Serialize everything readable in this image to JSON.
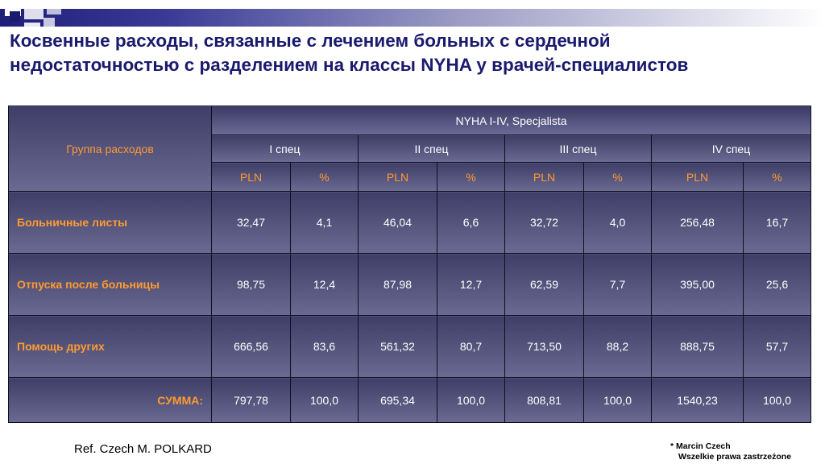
{
  "title": {
    "line1": "Косвенные расходы, связанные с лечением больных с сердечной",
    "line2": "недостаточностью с разделением на классы NYHA у врачей-специалистов"
  },
  "table": {
    "group_header": "Группа расходов",
    "top_header": "NYHA I-IV, Specjalista",
    "classes": [
      "I спец",
      "II спец",
      "III спец",
      "IV спец"
    ],
    "units": [
      "PLN",
      "%",
      "PLN",
      "%",
      "PLN",
      "%",
      "PLN",
      "%"
    ],
    "rows": [
      {
        "label": "Больничные листы",
        "values": [
          "32,47",
          "4,1",
          "46,04",
          "6,6",
          "32,72",
          "4,0",
          "256,48",
          "16,7"
        ]
      },
      {
        "label": "Отпуска после больницы",
        "values": [
          "98,75",
          "12,4",
          "87,98",
          "12,7",
          "62,59",
          "7,7",
          "395,00",
          "25,6"
        ]
      },
      {
        "label": "Помощь других",
        "values": [
          "666,56",
          "83,6",
          "561,32",
          "80,7",
          "713,50",
          "88,2",
          "888,75",
          "57,7"
        ]
      },
      {
        "label": "СУММА:",
        "values": [
          "797,78",
          "100,0",
          "695,34",
          "100,0",
          "808,81",
          "100,0",
          "1540,23",
          "100,0"
        ]
      }
    ]
  },
  "footer": {
    "ref": "Ref. Czech M. POLKARD",
    "author": "* Marcin Czech",
    "rights": "Wszelkie prawa zastrzeżone"
  },
  "colors": {
    "title": "#1a1a6e",
    "accent_text": "#ff9a30",
    "cell_bg": "#56567e"
  }
}
